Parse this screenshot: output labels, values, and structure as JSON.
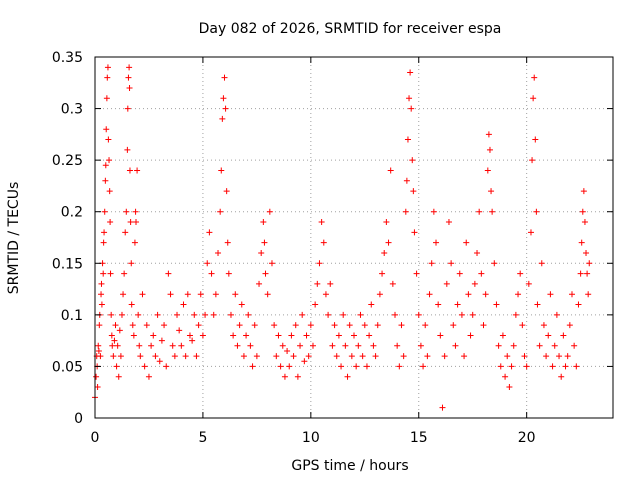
{
  "chart_data": {
    "type": "scatter",
    "title": "Day 082 of 2026, SRMTID for receiver espa",
    "xlabel": "GPS time / hours",
    "ylabel": "SRMTID / TECUs",
    "xlim": [
      0,
      24
    ],
    "ylim": [
      0,
      0.35
    ],
    "xticks": [
      0,
      5,
      10,
      15,
      20
    ],
    "xtick_labels": [
      "0",
      "5",
      "10",
      "15",
      "20"
    ],
    "yticks": [
      0,
      0.05,
      0.1,
      0.15,
      0.2,
      0.25,
      0.3,
      0.35
    ],
    "ytick_labels": [
      "0",
      "0.05",
      "0.1",
      "0.15",
      "0.2",
      "0.25",
      "0.3",
      "0.35"
    ],
    "grid": true,
    "marker": "+",
    "color": "#ff0000",
    "series": [
      {
        "name": "SRMTID",
        "points": [
          [
            0.0,
            0.02
          ],
          [
            0.05,
            0.04
          ],
          [
            0.08,
            0.06
          ],
          [
            0.1,
            0.05
          ],
          [
            0.12,
            0.03
          ],
          [
            0.15,
            0.07
          ],
          [
            0.18,
            0.065
          ],
          [
            0.2,
            0.09
          ],
          [
            0.22,
            0.1
          ],
          [
            0.25,
            0.06
          ],
          [
            0.28,
            0.12
          ],
          [
            0.3,
            0.13
          ],
          [
            0.32,
            0.11
          ],
          [
            0.35,
            0.15
          ],
          [
            0.38,
            0.14
          ],
          [
            0.4,
            0.17
          ],
          [
            0.42,
            0.18
          ],
          [
            0.45,
            0.2
          ],
          [
            0.48,
            0.23
          ],
          [
            0.5,
            0.245
          ],
          [
            0.52,
            0.28
          ],
          [
            0.55,
            0.31
          ],
          [
            0.57,
            0.33
          ],
          [
            0.6,
            0.34
          ],
          [
            0.62,
            0.27
          ],
          [
            0.65,
            0.25
          ],
          [
            0.68,
            0.22
          ],
          [
            0.7,
            0.19
          ],
          [
            0.72,
            0.14
          ],
          [
            0.75,
            0.1
          ],
          [
            0.78,
            0.08
          ],
          [
            0.8,
            0.07
          ],
          [
            0.85,
            0.06
          ],
          [
            0.9,
            0.075
          ],
          [
            0.95,
            0.09
          ],
          [
            1.0,
            0.05
          ],
          [
            1.05,
            0.07
          ],
          [
            1.1,
            0.04
          ],
          [
            1.15,
            0.085
          ],
          [
            1.2,
            0.06
          ],
          [
            1.25,
            0.1
          ],
          [
            1.3,
            0.12
          ],
          [
            1.35,
            0.14
          ],
          [
            1.4,
            0.18
          ],
          [
            1.45,
            0.2
          ],
          [
            1.5,
            0.26
          ],
          [
            1.52,
            0.3
          ],
          [
            1.55,
            0.33
          ],
          [
            1.58,
            0.34
          ],
          [
            1.6,
            0.32
          ],
          [
            1.62,
            0.24
          ],
          [
            1.65,
            0.19
          ],
          [
            1.68,
            0.15
          ],
          [
            1.7,
            0.11
          ],
          [
            1.75,
            0.09
          ],
          [
            1.8,
            0.08
          ],
          [
            1.85,
            0.17
          ],
          [
            1.88,
            0.2
          ],
          [
            1.9,
            0.19
          ],
          [
            1.95,
            0.24
          ],
          [
            2.0,
            0.1
          ],
          [
            2.05,
            0.07
          ],
          [
            2.1,
            0.06
          ],
          [
            2.2,
            0.12
          ],
          [
            2.3,
            0.05
          ],
          [
            2.4,
            0.09
          ],
          [
            2.5,
            0.04
          ],
          [
            2.6,
            0.07
          ],
          [
            2.7,
            0.08
          ],
          [
            2.8,
            0.06
          ],
          [
            2.9,
            0.1
          ],
          [
            3.0,
            0.055
          ],
          [
            3.1,
            0.075
          ],
          [
            3.2,
            0.09
          ],
          [
            3.3,
            0.05
          ],
          [
            3.4,
            0.14
          ],
          [
            3.5,
            0.12
          ],
          [
            3.6,
            0.07
          ],
          [
            3.7,
            0.06
          ],
          [
            3.8,
            0.1
          ],
          [
            3.9,
            0.085
          ],
          [
            4.0,
            0.07
          ],
          [
            4.1,
            0.11
          ],
          [
            4.2,
            0.06
          ],
          [
            4.3,
            0.12
          ],
          [
            4.4,
            0.08
          ],
          [
            4.5,
            0.075
          ],
          [
            4.6,
            0.1
          ],
          [
            4.7,
            0.06
          ],
          [
            4.8,
            0.09
          ],
          [
            4.9,
            0.12
          ],
          [
            5.0,
            0.08
          ],
          [
            5.1,
            0.1
          ],
          [
            5.2,
            0.15
          ],
          [
            5.3,
            0.18
          ],
          [
            5.4,
            0.14
          ],
          [
            5.5,
            0.1
          ],
          [
            5.6,
            0.12
          ],
          [
            5.7,
            0.16
          ],
          [
            5.8,
            0.2
          ],
          [
            5.85,
            0.24
          ],
          [
            5.9,
            0.29
          ],
          [
            5.95,
            0.31
          ],
          [
            6.0,
            0.33
          ],
          [
            6.05,
            0.3
          ],
          [
            6.1,
            0.22
          ],
          [
            6.15,
            0.17
          ],
          [
            6.2,
            0.14
          ],
          [
            6.3,
            0.1
          ],
          [
            6.4,
            0.08
          ],
          [
            6.5,
            0.12
          ],
          [
            6.6,
            0.07
          ],
          [
            6.7,
            0.09
          ],
          [
            6.8,
            0.11
          ],
          [
            6.9,
            0.06
          ],
          [
            7.0,
            0.08
          ],
          [
            7.1,
            0.1
          ],
          [
            7.2,
            0.07
          ],
          [
            7.3,
            0.05
          ],
          [
            7.4,
            0.09
          ],
          [
            7.5,
            0.06
          ],
          [
            7.6,
            0.13
          ],
          [
            7.7,
            0.16
          ],
          [
            7.8,
            0.19
          ],
          [
            7.85,
            0.17
          ],
          [
            7.9,
            0.14
          ],
          [
            8.0,
            0.12
          ],
          [
            8.1,
            0.2
          ],
          [
            8.2,
            0.15
          ],
          [
            8.3,
            0.09
          ],
          [
            8.4,
            0.06
          ],
          [
            8.5,
            0.08
          ],
          [
            8.6,
            0.05
          ],
          [
            8.7,
            0.07
          ],
          [
            8.8,
            0.04
          ],
          [
            8.9,
            0.065
          ],
          [
            9.0,
            0.05
          ],
          [
            9.1,
            0.08
          ],
          [
            9.2,
            0.06
          ],
          [
            9.3,
            0.09
          ],
          [
            9.4,
            0.04
          ],
          [
            9.5,
            0.07
          ],
          [
            9.6,
            0.1
          ],
          [
            9.7,
            0.055
          ],
          [
            9.8,
            0.08
          ],
          [
            9.9,
            0.06
          ],
          [
            10.0,
            0.09
          ],
          [
            10.1,
            0.07
          ],
          [
            10.2,
            0.11
          ],
          [
            10.3,
            0.13
          ],
          [
            10.4,
            0.15
          ],
          [
            10.5,
            0.19
          ],
          [
            10.6,
            0.17
          ],
          [
            10.7,
            0.12
          ],
          [
            10.8,
            0.1
          ],
          [
            10.9,
            0.13
          ],
          [
            11.0,
            0.07
          ],
          [
            11.1,
            0.09
          ],
          [
            11.2,
            0.06
          ],
          [
            11.3,
            0.08
          ],
          [
            11.4,
            0.05
          ],
          [
            11.5,
            0.1
          ],
          [
            11.6,
            0.07
          ],
          [
            11.7,
            0.04
          ],
          [
            11.8,
            0.09
          ],
          [
            11.9,
            0.06
          ],
          [
            12.0,
            0.08
          ],
          [
            12.1,
            0.05
          ],
          [
            12.2,
            0.07
          ],
          [
            12.3,
            0.1
          ],
          [
            12.4,
            0.06
          ],
          [
            12.5,
            0.09
          ],
          [
            12.6,
            0.05
          ],
          [
            12.7,
            0.08
          ],
          [
            12.8,
            0.11
          ],
          [
            12.9,
            0.07
          ],
          [
            13.0,
            0.06
          ],
          [
            13.1,
            0.09
          ],
          [
            13.2,
            0.12
          ],
          [
            13.3,
            0.14
          ],
          [
            13.4,
            0.16
          ],
          [
            13.5,
            0.19
          ],
          [
            13.6,
            0.17
          ],
          [
            13.7,
            0.24
          ],
          [
            13.8,
            0.13
          ],
          [
            13.9,
            0.1
          ],
          [
            14.0,
            0.07
          ],
          [
            14.1,
            0.05
          ],
          [
            14.2,
            0.09
          ],
          [
            14.3,
            0.06
          ],
          [
            14.4,
            0.2
          ],
          [
            14.45,
            0.23
          ],
          [
            14.5,
            0.27
          ],
          [
            14.55,
            0.31
          ],
          [
            14.6,
            0.335
          ],
          [
            14.65,
            0.3
          ],
          [
            14.7,
            0.25
          ],
          [
            14.75,
            0.22
          ],
          [
            14.8,
            0.18
          ],
          [
            14.9,
            0.14
          ],
          [
            15.0,
            0.1
          ],
          [
            15.1,
            0.07
          ],
          [
            15.2,
            0.05
          ],
          [
            15.3,
            0.09
          ],
          [
            15.4,
            0.06
          ],
          [
            15.5,
            0.12
          ],
          [
            15.6,
            0.15
          ],
          [
            15.7,
            0.2
          ],
          [
            15.8,
            0.17
          ],
          [
            15.9,
            0.11
          ],
          [
            16.0,
            0.08
          ],
          [
            16.1,
            0.01
          ],
          [
            16.2,
            0.06
          ],
          [
            16.3,
            0.13
          ],
          [
            16.4,
            0.19
          ],
          [
            16.5,
            0.15
          ],
          [
            16.6,
            0.09
          ],
          [
            16.7,
            0.07
          ],
          [
            16.8,
            0.11
          ],
          [
            16.9,
            0.14
          ],
          [
            17.0,
            0.1
          ],
          [
            17.1,
            0.06
          ],
          [
            17.2,
            0.17
          ],
          [
            17.3,
            0.12
          ],
          [
            17.4,
            0.08
          ],
          [
            17.5,
            0.1
          ],
          [
            17.6,
            0.13
          ],
          [
            17.7,
            0.16
          ],
          [
            17.8,
            0.2
          ],
          [
            17.9,
            0.14
          ],
          [
            18.0,
            0.09
          ],
          [
            18.1,
            0.12
          ],
          [
            18.2,
            0.24
          ],
          [
            18.25,
            0.275
          ],
          [
            18.3,
            0.26
          ],
          [
            18.35,
            0.22
          ],
          [
            18.4,
            0.2
          ],
          [
            18.5,
            0.15
          ],
          [
            18.6,
            0.11
          ],
          [
            18.7,
            0.07
          ],
          [
            18.8,
            0.05
          ],
          [
            18.9,
            0.08
          ],
          [
            19.0,
            0.04
          ],
          [
            19.1,
            0.06
          ],
          [
            19.2,
            0.03
          ],
          [
            19.3,
            0.05
          ],
          [
            19.4,
            0.07
          ],
          [
            19.5,
            0.1
          ],
          [
            19.6,
            0.12
          ],
          [
            19.7,
            0.14
          ],
          [
            19.8,
            0.09
          ],
          [
            19.9,
            0.06
          ],
          [
            20.0,
            0.05
          ],
          [
            20.1,
            0.13
          ],
          [
            20.2,
            0.18
          ],
          [
            20.25,
            0.25
          ],
          [
            20.3,
            0.31
          ],
          [
            20.35,
            0.33
          ],
          [
            20.4,
            0.27
          ],
          [
            20.45,
            0.2
          ],
          [
            20.5,
            0.11
          ],
          [
            20.6,
            0.07
          ],
          [
            20.7,
            0.15
          ],
          [
            20.8,
            0.09
          ],
          [
            20.9,
            0.06
          ],
          [
            21.0,
            0.08
          ],
          [
            21.1,
            0.12
          ],
          [
            21.2,
            0.05
          ],
          [
            21.3,
            0.07
          ],
          [
            21.4,
            0.1
          ],
          [
            21.5,
            0.06
          ],
          [
            21.6,
            0.04
          ],
          [
            21.7,
            0.08
          ],
          [
            21.8,
            0.05
          ],
          [
            21.9,
            0.06
          ],
          [
            22.0,
            0.09
          ],
          [
            22.1,
            0.12
          ],
          [
            22.2,
            0.07
          ],
          [
            22.3,
            0.05
          ],
          [
            22.4,
            0.11
          ],
          [
            22.5,
            0.14
          ],
          [
            22.55,
            0.17
          ],
          [
            22.6,
            0.2
          ],
          [
            22.65,
            0.22
          ],
          [
            22.7,
            0.19
          ],
          [
            22.75,
            0.16
          ],
          [
            22.8,
            0.14
          ],
          [
            22.85,
            0.12
          ],
          [
            22.9,
            0.15
          ]
        ]
      }
    ]
  }
}
